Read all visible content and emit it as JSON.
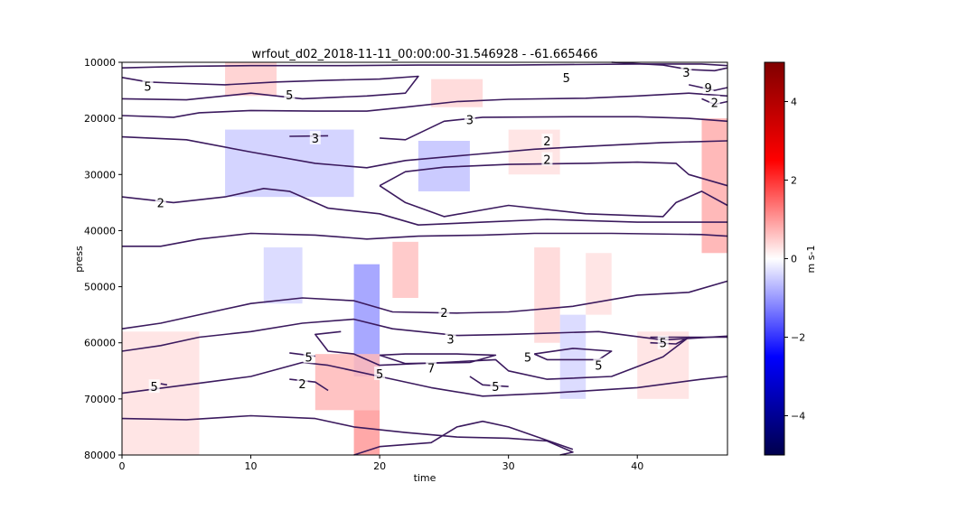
{
  "chart_data": {
    "type": "heatmap",
    "title": "wrfout_d02_2018-11-11_00:00:00-31.546928 - -61.665466",
    "xlabel": "time",
    "ylabel": "press",
    "xlim": [
      0,
      47
    ],
    "ylim": [
      80000,
      10000
    ],
    "x_ticks": [
      0,
      10,
      20,
      30,
      40
    ],
    "x_tick_labels": [
      "0",
      "10",
      "20",
      "30",
      "40"
    ],
    "y_ticks": [
      10000,
      20000,
      30000,
      40000,
      50000,
      60000,
      70000,
      80000
    ],
    "y_tick_labels": [
      "10000",
      "20000",
      "30000",
      "40000",
      "50000",
      "60000",
      "70000",
      "80000"
    ],
    "colorbar": {
      "label": "m s-1",
      "range": [
        -5,
        5
      ],
      "ticks": [
        4,
        2,
        0,
        -2,
        -4
      ],
      "tick_labels": [
        "4",
        "2",
        "0",
        "−2",
        "−4"
      ],
      "colormap": "seismic",
      "colors": [
        "#00004c",
        "#0000ff",
        "#ffffff",
        "#ff0000",
        "#800000"
      ]
    },
    "heatmap_cells": [
      {
        "x": [
          8,
          12
        ],
        "y": [
          10000,
          16000
        ],
        "v": 0.5
      },
      {
        "x": [
          24,
          28
        ],
        "y": [
          13000,
          18000
        ],
        "v": 0.4
      },
      {
        "x": [
          8,
          18
        ],
        "y": [
          22000,
          34000
        ],
        "v": -0.5
      },
      {
        "x": [
          23,
          27
        ],
        "y": [
          24000,
          33000
        ],
        "v": -0.6
      },
      {
        "x": [
          30,
          34
        ],
        "y": [
          22000,
          30000
        ],
        "v": 0.3
      },
      {
        "x": [
          45,
          47
        ],
        "y": [
          20000,
          44000
        ],
        "v": 0.8
      },
      {
        "x": [
          11,
          14
        ],
        "y": [
          43000,
          53000
        ],
        "v": -0.4
      },
      {
        "x": [
          18,
          20
        ],
        "y": [
          46000,
          66000
        ],
        "v": -1.0
      },
      {
        "x": [
          21,
          23
        ],
        "y": [
          42000,
          52000
        ],
        "v": 0.6
      },
      {
        "x": [
          32,
          34
        ],
        "y": [
          43000,
          60000
        ],
        "v": 0.4
      },
      {
        "x": [
          36,
          38
        ],
        "y": [
          44000,
          55000
        ],
        "v": 0.3
      },
      {
        "x": [
          34,
          36
        ],
        "y": [
          55000,
          70000
        ],
        "v": -0.4
      },
      {
        "x": [
          15,
          20
        ],
        "y": [
          62000,
          72000
        ],
        "v": 0.7
      },
      {
        "x": [
          18,
          20
        ],
        "y": [
          72000,
          80000
        ],
        "v": 1.0
      },
      {
        "x": [
          0,
          6
        ],
        "y": [
          58000,
          80000
        ],
        "v": 0.3
      },
      {
        "x": [
          40,
          44
        ],
        "y": [
          58000,
          70000
        ],
        "v": 0.3
      }
    ],
    "contour_level_labels": [
      {
        "text": "5",
        "x": 2.0,
        "y": 14300
      },
      {
        "text": "5",
        "x": 13.0,
        "y": 15800
      },
      {
        "text": "3",
        "x": 15.0,
        "y": 23500
      },
      {
        "text": "3",
        "x": 27.0,
        "y": 20200
      },
      {
        "text": "5",
        "x": 34.5,
        "y": 12700
      },
      {
        "text": "3",
        "x": 43.8,
        "y": 11800
      },
      {
        "text": "2",
        "x": 33.0,
        "y": 24000
      },
      {
        "text": "2",
        "x": 33.0,
        "y": 27300
      },
      {
        "text": "2",
        "x": 3.0,
        "y": 35000
      },
      {
        "text": "2",
        "x": 25.0,
        "y": 54600
      },
      {
        "text": "3",
        "x": 25.5,
        "y": 59300
      },
      {
        "text": "5",
        "x": 14.5,
        "y": 62500
      },
      {
        "text": "2",
        "x": 14.0,
        "y": 67300
      },
      {
        "text": "5",
        "x": 2.5,
        "y": 67800
      },
      {
        "text": "5",
        "x": 20.0,
        "y": 65500
      },
      {
        "text": "7",
        "x": 24.0,
        "y": 64500
      },
      {
        "text": "5",
        "x": 29.0,
        "y": 67800
      },
      {
        "text": "5",
        "x": 31.5,
        "y": 62500
      },
      {
        "text": "5",
        "x": 37.0,
        "y": 64000
      },
      {
        "text": "5",
        "x": 42.0,
        "y": 60000
      },
      {
        "text": "2",
        "x": 46.0,
        "y": 17200
      },
      {
        "text": "9",
        "x": 45.5,
        "y": 14500
      }
    ],
    "contour_lines": [
      [
        [
          0,
          11000
        ],
        [
          5,
          10700
        ],
        [
          10,
          10600
        ],
        [
          17,
          10600
        ],
        [
          23,
          10500
        ],
        [
          30,
          10500
        ],
        [
          40,
          10300
        ],
        [
          45,
          10300
        ],
        [
          47,
          10600
        ]
      ],
      [
        [
          0,
          16500
        ],
        [
          5,
          16700
        ],
        [
          10,
          15500
        ],
        [
          14,
          16500
        ],
        [
          19,
          16000
        ],
        [
          22,
          15500
        ],
        [
          23,
          12500
        ],
        [
          20,
          13000
        ],
        [
          16,
          13200
        ],
        [
          12,
          13500
        ],
        [
          8,
          14000
        ],
        [
          4,
          13700
        ],
        [
          2,
          13500
        ],
        [
          0,
          12700
        ]
      ],
      [
        [
          0,
          19500
        ],
        [
          4,
          19800
        ],
        [
          6,
          19000
        ],
        [
          10,
          18600
        ],
        [
          15,
          18700
        ],
        [
          19,
          18700
        ],
        [
          22,
          18000
        ],
        [
          26,
          17000
        ],
        [
          30,
          16600
        ],
        [
          36,
          16400
        ],
        [
          40,
          16000
        ],
        [
          44,
          15500
        ],
        [
          47,
          16000
        ]
      ],
      [
        [
          20,
          23500
        ],
        [
          22,
          23800
        ],
        [
          25,
          20500
        ],
        [
          28,
          19800
        ],
        [
          35,
          19700
        ],
        [
          40,
          19700
        ],
        [
          44,
          20000
        ],
        [
          47,
          20500
        ]
      ],
      [
        [
          13,
          23200
        ],
        [
          16,
          23100
        ]
      ],
      [
        [
          0,
          23300
        ],
        [
          5,
          23800
        ],
        [
          10,
          26000
        ],
        [
          15,
          28000
        ],
        [
          19,
          28800
        ],
        [
          22,
          27500
        ],
        [
          27,
          26500
        ],
        [
          32,
          25500
        ],
        [
          36,
          25000
        ],
        [
          42,
          24300
        ],
        [
          47,
          24000
        ]
      ],
      [
        [
          20,
          32000
        ],
        [
          22,
          29500
        ],
        [
          25,
          28700
        ],
        [
          30,
          28200
        ],
        [
          36,
          28000
        ],
        [
          40,
          27800
        ],
        [
          43,
          28000
        ],
        [
          44,
          30000
        ],
        [
          47,
          32000
        ]
      ],
      [
        [
          20,
          32000
        ],
        [
          22,
          35000
        ],
        [
          25,
          37500
        ],
        [
          30,
          35500
        ],
        [
          36,
          37000
        ],
        [
          42,
          37500
        ],
        [
          43,
          35000
        ],
        [
          45,
          33000
        ],
        [
          47,
          35500
        ]
      ],
      [
        [
          0,
          34000
        ],
        [
          4,
          35000
        ],
        [
          8,
          34000
        ],
        [
          11,
          32500
        ],
        [
          13,
          33000
        ],
        [
          16,
          36000
        ],
        [
          20,
          37000
        ],
        [
          23,
          39000
        ],
        [
          28,
          38500
        ],
        [
          33,
          38000
        ],
        [
          40,
          38500
        ],
        [
          47,
          38500
        ]
      ],
      [
        [
          0,
          42800
        ],
        [
          3,
          42800
        ],
        [
          6,
          41500
        ],
        [
          10,
          40500
        ],
        [
          15,
          40800
        ],
        [
          19,
          41500
        ],
        [
          23,
          41000
        ],
        [
          28,
          40800
        ],
        [
          32,
          40500
        ],
        [
          38,
          40500
        ],
        [
          45,
          40700
        ],
        [
          47,
          41000
        ]
      ],
      [
        [
          0,
          57500
        ],
        [
          3,
          56500
        ],
        [
          6,
          55000
        ],
        [
          10,
          53000
        ],
        [
          14,
          52000
        ],
        [
          18,
          52500
        ],
        [
          21,
          54500
        ],
        [
          26,
          54700
        ],
        [
          30,
          54500
        ],
        [
          35,
          53500
        ],
        [
          40,
          51500
        ],
        [
          44,
          51000
        ],
        [
          47,
          49000
        ]
      ],
      [
        [
          0,
          61500
        ],
        [
          3,
          60500
        ],
        [
          6,
          59000
        ],
        [
          10,
          58000
        ],
        [
          14,
          56500
        ],
        [
          18,
          55800
        ],
        [
          21,
          57500
        ],
        [
          26,
          58700
        ],
        [
          30,
          58500
        ],
        [
          37,
          58000
        ],
        [
          42,
          59500
        ],
        [
          47,
          58800
        ]
      ],
      [
        [
          17,
          58000
        ],
        [
          15,
          58500
        ],
        [
          16,
          61500
        ],
        [
          18,
          62000
        ],
        [
          20,
          64000
        ],
        [
          25,
          63500
        ],
        [
          29,
          63000
        ],
        [
          30,
          65000
        ],
        [
          33,
          66500
        ],
        [
          38,
          66000
        ],
        [
          42,
          62500
        ],
        [
          44,
          59000
        ],
        [
          47,
          59000
        ]
      ],
      [
        [
          20,
          62200
        ],
        [
          22,
          62000
        ],
        [
          26,
          62000
        ],
        [
          29,
          62200
        ],
        [
          27,
          63500
        ],
        [
          22,
          63700
        ],
        [
          20,
          62200
        ]
      ],
      [
        [
          32,
          62000
        ],
        [
          35,
          61000
        ],
        [
          38,
          61500
        ],
        [
          37,
          63000
        ],
        [
          33,
          63000
        ],
        [
          32,
          62000
        ]
      ],
      [
        [
          13,
          61800
        ],
        [
          15,
          62400
        ]
      ],
      [
        [
          13,
          66500
        ],
        [
          15,
          67000
        ],
        [
          16,
          68500
        ]
      ],
      [
        [
          3,
          67300
        ],
        [
          3.5,
          67500
        ]
      ],
      [
        [
          27,
          66000
        ],
        [
          28,
          67500
        ],
        [
          30,
          67800
        ]
      ],
      [
        [
          41,
          59000
        ],
        [
          44,
          59000
        ],
        [
          43,
          60200
        ],
        [
          41,
          60000
        ]
      ],
      [
        [
          0,
          69000
        ],
        [
          5,
          67500
        ],
        [
          10,
          66000
        ],
        [
          14,
          63500
        ],
        [
          16,
          64000
        ],
        [
          20,
          66000
        ],
        [
          24,
          68000
        ],
        [
          28,
          69500
        ],
        [
          33,
          69000
        ],
        [
          40,
          68000
        ],
        [
          45,
          66500
        ],
        [
          47,
          66000
        ]
      ],
      [
        [
          0,
          73500
        ],
        [
          5,
          73700
        ],
        [
          10,
          73000
        ],
        [
          15,
          73500
        ],
        [
          18,
          75000
        ],
        [
          22,
          76000
        ],
        [
          26,
          76800
        ],
        [
          30,
          77000
        ],
        [
          33,
          77500
        ],
        [
          35,
          79500
        ],
        [
          34,
          80000
        ]
      ],
      [
        [
          18,
          80000
        ],
        [
          20,
          78500
        ],
        [
          24,
          77800
        ],
        [
          26,
          75000
        ],
        [
          28,
          74000
        ],
        [
          30,
          75000
        ],
        [
          35,
          79000
        ]
      ],
      [
        [
          38,
          10000
        ],
        [
          42,
          10500
        ],
        [
          44,
          11300
        ],
        [
          46,
          11500
        ],
        [
          47,
          11000
        ]
      ],
      [
        [
          44,
          14000
        ],
        [
          46,
          15000
        ],
        [
          47,
          14500
        ]
      ],
      [
        [
          45,
          16500
        ],
        [
          46,
          17500
        ],
        [
          47,
          17000
        ]
      ]
    ]
  }
}
